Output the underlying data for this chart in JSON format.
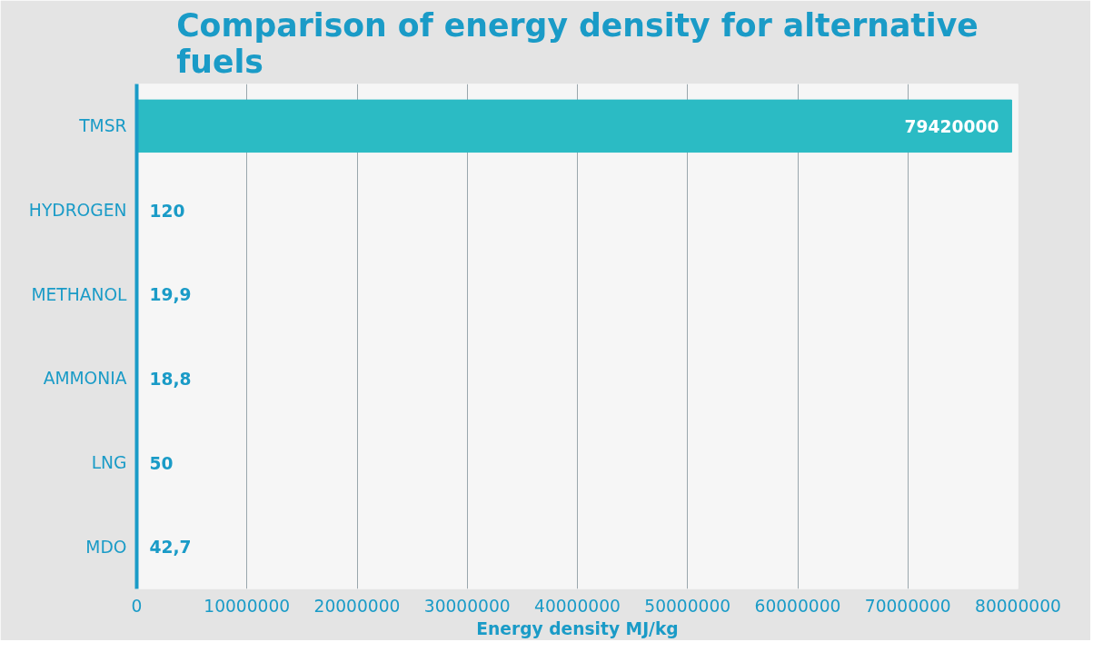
{
  "chart_data": {
    "type": "bar",
    "orientation": "horizontal",
    "title": "Comparison of energy density for alternative fuels",
    "xlabel": "Energy density MJ/kg",
    "categories": [
      "TMSR",
      "HYDROGEN",
      "METHANOL",
      "AMMONIA",
      "LNG",
      "MDO"
    ],
    "values": [
      79420000,
      120,
      19.9,
      18.8,
      50,
      42.7
    ],
    "value_labels": [
      "79420000",
      "120",
      "19,9",
      "18,8",
      "50",
      "42,7"
    ],
    "color": "#2bbbc4",
    "xlim": [
      0,
      80000000
    ],
    "xticks": [
      0,
      10000000,
      20000000,
      30000000,
      40000000,
      50000000,
      60000000,
      70000000,
      80000000
    ],
    "grid": "x"
  }
}
